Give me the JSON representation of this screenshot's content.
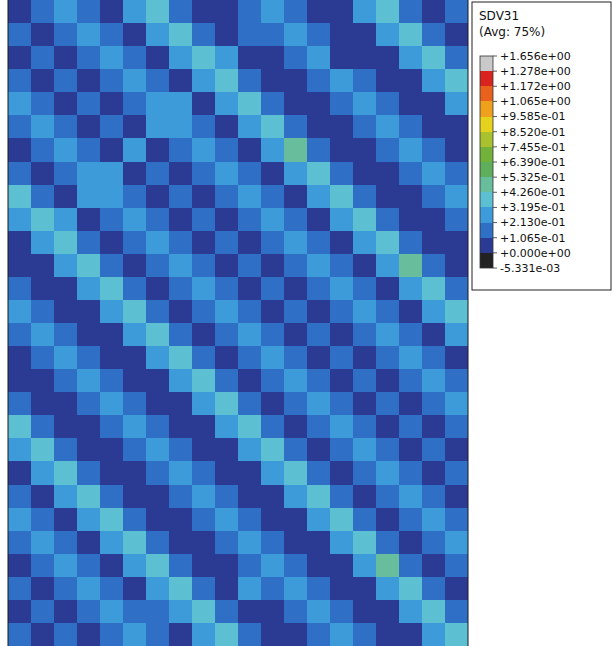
{
  "chart_data": {
    "type": "heatmap",
    "title": "SDV31",
    "subtitle": "(Avg: 75%)",
    "colorbar": {
      "range": [
        -0.005331,
        1.656
      ],
      "ticks": [
        {
          "value": 1.656,
          "label": "+1.656e+00"
        },
        {
          "value": 1.278,
          "label": "+1.278e+00"
        },
        {
          "value": 1.172,
          "label": "+1.172e+00"
        },
        {
          "value": 1.065,
          "label": "+1.065e+00"
        },
        {
          "value": 0.9585,
          "label": "+9.585e-01"
        },
        {
          "value": 0.852,
          "label": "+8.520e-01"
        },
        {
          "value": 0.7455,
          "label": "+7.455e-01"
        },
        {
          "value": 0.639,
          "label": "+6.390e-01"
        },
        {
          "value": 0.5325,
          "label": "+5.325e-01"
        },
        {
          "value": 0.426,
          "label": "+4.260e-01"
        },
        {
          "value": 0.3195,
          "label": "+3.195e-01"
        },
        {
          "value": 0.213,
          "label": "+2.130e-01"
        },
        {
          "value": 0.1065,
          "label": "+1.065e-01"
        },
        {
          "value": 0,
          "label": "+0.000e+00"
        },
        {
          "value": -0.005331,
          "label": "-5.331e-03"
        }
      ]
    },
    "cells": [
      [
        0.05,
        0.18,
        0.27,
        0.12,
        0.05,
        0.22,
        0.34,
        0.16,
        0.08,
        0.05,
        0.2,
        0.29,
        0.14,
        0.05,
        0.1,
        0.25,
        0.38,
        0.18,
        0.06,
        0.12
      ],
      [
        0.21,
        0.05,
        0.18,
        0.3,
        0.12,
        0.05,
        0.22,
        0.34,
        0.16,
        0.08,
        0.15,
        0.2,
        0.29,
        0.14,
        0.05,
        0.1,
        0.25,
        0.38,
        0.18,
        0.06
      ],
      [
        0.05,
        0.21,
        0.05,
        0.18,
        0.27,
        0.12,
        0.05,
        0.22,
        0.34,
        0.26,
        0.08,
        0.05,
        0.2,
        0.29,
        0.08,
        0.05,
        0.1,
        0.25,
        0.38,
        0.18
      ],
      [
        0.15,
        0.05,
        0.21,
        0.05,
        0.18,
        0.27,
        0.12,
        0.05,
        0.26,
        0.34,
        0.16,
        0.08,
        0.05,
        0.2,
        0.29,
        0.14,
        0.05,
        0.1,
        0.25,
        0.38
      ],
      [
        0.28,
        0.15,
        0.05,
        0.21,
        0.05,
        0.18,
        0.27,
        0.24,
        0.05,
        0.22,
        0.34,
        0.16,
        0.08,
        0.05,
        0.2,
        0.29,
        0.14,
        0.05,
        0.1,
        0.25
      ],
      [
        0.12,
        0.28,
        0.15,
        0.05,
        0.21,
        0.05,
        0.22,
        0.27,
        0.12,
        0.05,
        0.22,
        0.34,
        0.16,
        0.08,
        0.05,
        0.2,
        0.29,
        0.14,
        0.05,
        0.1
      ],
      [
        0.06,
        0.12,
        0.28,
        0.15,
        0.05,
        0.3,
        0.05,
        0.18,
        0.27,
        0.12,
        0.05,
        0.22,
        0.45,
        0.16,
        0.08,
        0.05,
        0.2,
        0.29,
        0.14,
        0.05
      ],
      [
        0.18,
        0.06,
        0.12,
        0.28,
        0.25,
        0.05,
        0.21,
        0.05,
        0.18,
        0.27,
        0.12,
        0.05,
        0.22,
        0.34,
        0.16,
        0.08,
        0.05,
        0.2,
        0.29,
        0.14
      ],
      [
        0.38,
        0.18,
        0.06,
        0.24,
        0.28,
        0.15,
        0.05,
        0.21,
        0.05,
        0.18,
        0.27,
        0.12,
        0.05,
        0.22,
        0.34,
        0.16,
        0.08,
        0.05,
        0.2,
        0.29
      ],
      [
        0.25,
        0.38,
        0.28,
        0.06,
        0.12,
        0.28,
        0.15,
        0.05,
        0.21,
        0.05,
        0.18,
        0.27,
        0.12,
        0.05,
        0.22,
        0.34,
        0.16,
        0.08,
        0.05,
        0.2
      ],
      [
        0.1,
        0.25,
        0.38,
        0.18,
        0.06,
        0.12,
        0.28,
        0.15,
        0.05,
        0.21,
        0.05,
        0.18,
        0.27,
        0.12,
        0.05,
        0.22,
        0.34,
        0.16,
        0.08,
        0.05
      ],
      [
        0.05,
        0.1,
        0.25,
        0.38,
        0.18,
        0.06,
        0.12,
        0.28,
        0.15,
        0.05,
        0.21,
        0.05,
        0.18,
        0.27,
        0.12,
        0.05,
        0.22,
        0.5,
        0.16,
        0.08
      ],
      [
        0.14,
        0.05,
        0.1,
        0.25,
        0.38,
        0.18,
        0.06,
        0.12,
        0.28,
        0.15,
        0.05,
        0.21,
        0.05,
        0.18,
        0.27,
        0.12,
        0.05,
        0.22,
        0.34,
        0.16
      ],
      [
        0.29,
        0.14,
        0.05,
        0.1,
        0.25,
        0.38,
        0.18,
        0.06,
        0.12,
        0.28,
        0.15,
        0.05,
        0.21,
        0.05,
        0.18,
        0.27,
        0.12,
        0.05,
        0.22,
        0.34
      ],
      [
        0.2,
        0.29,
        0.14,
        0.05,
        0.1,
        0.25,
        0.38,
        0.18,
        0.06,
        0.12,
        0.28,
        0.15,
        0.05,
        0.21,
        0.05,
        0.18,
        0.27,
        0.12,
        0.05,
        0.22
      ],
      [
        0.05,
        0.2,
        0.29,
        0.14,
        0.05,
        0.1,
        0.25,
        0.38,
        0.18,
        0.06,
        0.12,
        0.28,
        0.15,
        0.05,
        0.21,
        0.05,
        0.18,
        0.27,
        0.12,
        0.05
      ],
      [
        0.08,
        0.05,
        0.2,
        0.29,
        0.14,
        0.05,
        0.1,
        0.25,
        0.38,
        0.18,
        0.06,
        0.12,
        0.28,
        0.15,
        0.05,
        0.21,
        0.05,
        0.18,
        0.27,
        0.12
      ],
      [
        0.16,
        0.08,
        0.05,
        0.2,
        0.29,
        0.14,
        0.05,
        0.1,
        0.25,
        0.38,
        0.18,
        0.06,
        0.12,
        0.28,
        0.15,
        0.05,
        0.21,
        0.05,
        0.18,
        0.27
      ],
      [
        0.34,
        0.16,
        0.08,
        0.05,
        0.2,
        0.29,
        0.14,
        0.05,
        0.1,
        0.25,
        0.38,
        0.18,
        0.06,
        0.12,
        0.28,
        0.15,
        0.05,
        0.21,
        0.05,
        0.18
      ],
      [
        0.22,
        0.34,
        0.16,
        0.08,
        0.05,
        0.2,
        0.29,
        0.14,
        0.05,
        0.1,
        0.25,
        0.38,
        0.18,
        0.06,
        0.12,
        0.28,
        0.15,
        0.05,
        0.21,
        0.05
      ],
      [
        0.05,
        0.22,
        0.34,
        0.16,
        0.08,
        0.05,
        0.2,
        0.29,
        0.14,
        0.05,
        0.1,
        0.25,
        0.38,
        0.18,
        0.06,
        0.12,
        0.28,
        0.15,
        0.05,
        0.21
      ],
      [
        0.12,
        0.05,
        0.22,
        0.34,
        0.16,
        0.08,
        0.05,
        0.2,
        0.29,
        0.14,
        0.05,
        0.1,
        0.25,
        0.38,
        0.18,
        0.06,
        0.12,
        0.28,
        0.15,
        0.05
      ],
      [
        0.27,
        0.12,
        0.05,
        0.22,
        0.34,
        0.16,
        0.08,
        0.05,
        0.2,
        0.29,
        0.14,
        0.05,
        0.1,
        0.25,
        0.38,
        0.18,
        0.06,
        0.12,
        0.28,
        0.15
      ],
      [
        0.18,
        0.27,
        0.12,
        0.05,
        0.22,
        0.34,
        0.16,
        0.08,
        0.05,
        0.2,
        0.29,
        0.14,
        0.05,
        0.1,
        0.25,
        0.38,
        0.18,
        0.06,
        0.12,
        0.28
      ],
      [
        0.05,
        0.18,
        0.27,
        0.2,
        0.05,
        0.22,
        0.34,
        0.16,
        0.08,
        0.05,
        0.2,
        0.29,
        0.14,
        0.05,
        0.1,
        0.25,
        0.45,
        0.18,
        0.06,
        0.12
      ],
      [
        0.21,
        0.05,
        0.18,
        0.27,
        0.12,
        0.05,
        0.22,
        0.34,
        0.16,
        0.08,
        0.24,
        0.2,
        0.29,
        0.14,
        0.05,
        0.1,
        0.25,
        0.38,
        0.18,
        0.06
      ],
      [
        0.05,
        0.21,
        0.05,
        0.18,
        0.27,
        0.12,
        0.15,
        0.22,
        0.34,
        0.16,
        0.08,
        0.05,
        0.2,
        0.29,
        0.14,
        0.05,
        0.1,
        0.25,
        0.38,
        0.18
      ],
      [
        0.15,
        0.05,
        0.21,
        0.05,
        0.18,
        0.27,
        0.12,
        0.05,
        0.22,
        0.34,
        0.16,
        0.08,
        0.05,
        0.2,
        0.29,
        0.14,
        0.05,
        0.1,
        0.25,
        0.38
      ]
    ]
  }
}
